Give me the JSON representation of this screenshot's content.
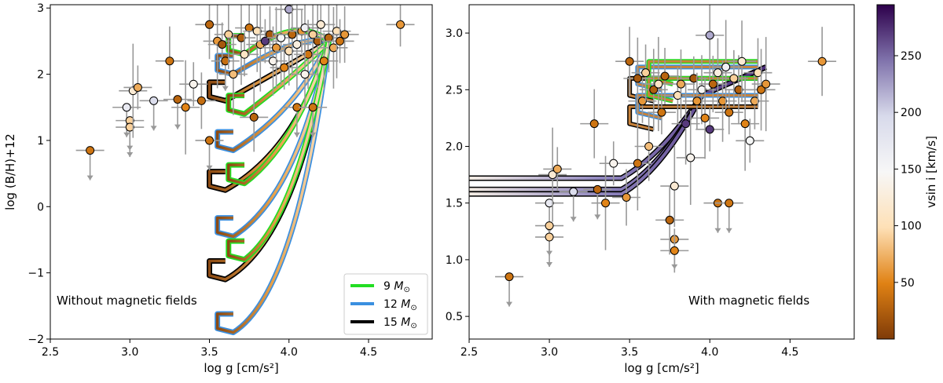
{
  "chart_data": [
    {
      "type": "scatter",
      "panel": "left",
      "title": "",
      "xlabel": "log g [cm/s²]",
      "ylabel": "log  (B/H)+12",
      "xlim": [
        2.5,
        4.9
      ],
      "ylim": [
        -2,
        3.05
      ],
      "xticks": [
        "2.5",
        "3.0",
        "3.5",
        "4.0",
        "4.5"
      ],
      "xtick_values": [
        2.5,
        3.0,
        3.5,
        4.0,
        4.5
      ],
      "yticks": [
        "−2",
        "−1",
        "0",
        "1",
        "2",
        "3"
      ],
      "ytick_values": [
        -2,
        -1,
        0,
        1,
        2,
        3
      ],
      "annotation": "Without magnetic fields",
      "legend": {
        "placement": "lower-right",
        "entries": [
          {
            "label": "9",
            "unit": "M",
            "sub": "⊙",
            "color": "#22dd22"
          },
          {
            "label": "12",
            "unit": "M",
            "sub": "⊙",
            "color": "#3a8fe0"
          },
          {
            "label": "15",
            "unit": "M",
            "sub": "⊙",
            "color": "#000000"
          }
        ]
      },
      "tracks": [
        {
          "mass": "15",
          "color": "#000000",
          "hook_g": 3.5,
          "levels": [
            1.6,
            0.25,
            -1.1
          ]
        },
        {
          "mass": "12",
          "color": "#3a8fe0",
          "hook_g": 3.55,
          "levels": [
            2.0,
            0.85,
            -0.45,
            -1.9
          ]
        },
        {
          "mass": "9",
          "color": "#22dd22",
          "hook_g": 3.62,
          "levels": [
            2.3,
            1.4,
            0.35,
            -0.8
          ]
        }
      ],
      "points": [
        {
          "x": 2.75,
          "y": 0.85,
          "v": 40,
          "upper": true
        },
        {
          "x": 2.98,
          "y": 1.5,
          "v": 170,
          "upper": true
        },
        {
          "x": 3.0,
          "y": 1.3,
          "v": 90,
          "upper": true
        },
        {
          "x": 3.0,
          "y": 1.2,
          "v": 90,
          "upper": true
        },
        {
          "x": 3.02,
          "y": 1.75,
          "v": 120,
          "upper": false
        },
        {
          "x": 3.05,
          "y": 1.8,
          "v": 70,
          "upper": false
        },
        {
          "x": 3.15,
          "y": 1.6,
          "v": 190,
          "upper": true
        },
        {
          "x": 3.25,
          "y": 2.2,
          "v": 40,
          "upper": false
        },
        {
          "x": 3.3,
          "y": 1.62,
          "v": 30,
          "upper": true
        },
        {
          "x": 3.35,
          "y": 1.5,
          "v": 50,
          "upper": false
        },
        {
          "x": 3.4,
          "y": 1.85,
          "v": 140,
          "upper": false
        },
        {
          "x": 3.45,
          "y": 1.6,
          "v": 35,
          "upper": false
        },
        {
          "x": 3.5,
          "y": 2.75,
          "v": 30,
          "upper": false
        },
        {
          "x": 3.5,
          "y": 1.0,
          "v": 40,
          "upper": true
        },
        {
          "x": 3.55,
          "y": 2.5,
          "v": 60,
          "upper": false
        },
        {
          "x": 3.58,
          "y": 2.45,
          "v": 20,
          "upper": false
        },
        {
          "x": 3.6,
          "y": 2.2,
          "v": 35,
          "upper": true
        },
        {
          "x": 3.62,
          "y": 2.6,
          "v": 90,
          "upper": false
        },
        {
          "x": 3.65,
          "y": 2.0,
          "v": 80,
          "upper": false
        },
        {
          "x": 3.7,
          "y": 2.55,
          "v": 25,
          "upper": false
        },
        {
          "x": 3.72,
          "y": 2.3,
          "v": 110,
          "upper": false
        },
        {
          "x": 3.75,
          "y": 2.7,
          "v": 40,
          "upper": false
        },
        {
          "x": 3.78,
          "y": 1.35,
          "v": 30,
          "upper": false
        },
        {
          "x": 3.8,
          "y": 2.65,
          "v": 100,
          "upper": false
        },
        {
          "x": 3.82,
          "y": 2.45,
          "v": 70,
          "upper": false
        },
        {
          "x": 3.85,
          "y": 2.5,
          "v": 270,
          "upper": false
        },
        {
          "x": 3.88,
          "y": 2.6,
          "v": 20,
          "upper": false
        },
        {
          "x": 3.9,
          "y": 2.2,
          "v": 140,
          "upper": false
        },
        {
          "x": 3.92,
          "y": 2.4,
          "v": 60,
          "upper": false
        },
        {
          "x": 3.95,
          "y": 2.55,
          "v": 150,
          "upper": false
        },
        {
          "x": 3.97,
          "y": 2.1,
          "v": 50,
          "upper": false
        },
        {
          "x": 4.0,
          "y": 2.98,
          "v": 220,
          "upper": false
        },
        {
          "x": 4.0,
          "y": 2.35,
          "v": 100,
          "upper": false
        },
        {
          "x": 4.02,
          "y": 2.6,
          "v": 30,
          "upper": false
        },
        {
          "x": 4.05,
          "y": 2.45,
          "v": 130,
          "upper": false
        },
        {
          "x": 4.08,
          "y": 2.65,
          "v": 60,
          "upper": false
        },
        {
          "x": 4.1,
          "y": 2.7,
          "v": 160,
          "upper": false
        },
        {
          "x": 4.12,
          "y": 2.3,
          "v": 40,
          "upper": false
        },
        {
          "x": 4.15,
          "y": 2.6,
          "v": 90,
          "upper": false
        },
        {
          "x": 4.18,
          "y": 2.5,
          "v": 25,
          "upper": false
        },
        {
          "x": 4.2,
          "y": 2.75,
          "v": 120,
          "upper": false
        },
        {
          "x": 4.22,
          "y": 2.2,
          "v": 50,
          "upper": false
        },
        {
          "x": 4.25,
          "y": 2.55,
          "v": 30,
          "upper": false
        },
        {
          "x": 4.28,
          "y": 2.4,
          "v": 70,
          "upper": false
        },
        {
          "x": 4.3,
          "y": 2.65,
          "v": 100,
          "upper": false
        },
        {
          "x": 4.32,
          "y": 2.5,
          "v": 40,
          "upper": false
        },
        {
          "x": 4.35,
          "y": 2.6,
          "v": 60,
          "upper": false
        },
        {
          "x": 4.1,
          "y": 2.0,
          "v": 140,
          "upper": false
        },
        {
          "x": 4.05,
          "y": 1.5,
          "v": 40,
          "upper": true
        },
        {
          "x": 4.15,
          "y": 1.5,
          "v": 40,
          "upper": true
        },
        {
          "x": 4.7,
          "y": 2.75,
          "v": 60,
          "upper": false
        }
      ]
    },
    {
      "type": "scatter",
      "panel": "right",
      "title": "",
      "xlabel": "log g [cm/s²]",
      "ylabel": "",
      "xlim": [
        2.5,
        4.9
      ],
      "ylim": [
        0.3,
        3.25
      ],
      "xticks": [
        "2.5",
        "3.0",
        "3.5",
        "4.0",
        "4.5"
      ],
      "xtick_values": [
        2.5,
        3.0,
        3.5,
        4.0,
        4.5
      ],
      "yticks": [
        "0.5",
        "1.0",
        "1.5",
        "2.0",
        "2.5",
        "3.0"
      ],
      "ytick_values": [
        0.5,
        1.0,
        1.5,
        2.0,
        2.5,
        3.0
      ],
      "annotation": "With magnetic fields",
      "tracks": [
        {
          "mass": "15",
          "color": "#000000",
          "hook_g": 3.5,
          "levels": [
            2.45,
            2.2
          ]
        },
        {
          "mass": "12",
          "color": "#3a8fe0",
          "hook_g": 3.55,
          "levels": [
            2.55,
            2.3
          ]
        },
        {
          "mass": "9",
          "color": "#22dd22",
          "hook_g": 3.62,
          "levels": [
            2.6,
            2.45
          ]
        }
      ],
      "points": [
        {
          "x": 2.75,
          "y": 0.85,
          "v": 40,
          "upper": true
        },
        {
          "x": 3.0,
          "y": 1.5,
          "v": 170,
          "upper": true
        },
        {
          "x": 3.0,
          "y": 1.3,
          "v": 90,
          "upper": true
        },
        {
          "x": 3.0,
          "y": 1.2,
          "v": 90,
          "upper": true
        },
        {
          "x": 3.02,
          "y": 1.75,
          "v": 120,
          "upper": false
        },
        {
          "x": 3.05,
          "y": 1.8,
          "v": 70,
          "upper": false
        },
        {
          "x": 3.15,
          "y": 1.6,
          "v": 190,
          "upper": true
        },
        {
          "x": 3.28,
          "y": 2.2,
          "v": 40,
          "upper": false
        },
        {
          "x": 3.3,
          "y": 1.62,
          "v": 30,
          "upper": true
        },
        {
          "x": 3.35,
          "y": 1.5,
          "v": 50,
          "upper": false
        },
        {
          "x": 3.4,
          "y": 1.85,
          "v": 140,
          "upper": false
        },
        {
          "x": 3.48,
          "y": 1.55,
          "v": 60,
          "upper": false
        },
        {
          "x": 3.5,
          "y": 2.75,
          "v": 30,
          "upper": false
        },
        {
          "x": 3.55,
          "y": 2.6,
          "v": 20,
          "upper": false
        },
        {
          "x": 3.55,
          "y": 1.85,
          "v": 40,
          "upper": false
        },
        {
          "x": 3.58,
          "y": 2.4,
          "v": 60,
          "upper": false
        },
        {
          "x": 3.6,
          "y": 2.65,
          "v": 90,
          "upper": false
        },
        {
          "x": 3.62,
          "y": 2.0,
          "v": 80,
          "upper": false
        },
        {
          "x": 3.65,
          "y": 2.5,
          "v": 25,
          "upper": false
        },
        {
          "x": 3.68,
          "y": 2.55,
          "v": 110,
          "upper": false
        },
        {
          "x": 3.7,
          "y": 2.3,
          "v": 40,
          "upper": false
        },
        {
          "x": 3.72,
          "y": 2.62,
          "v": 30,
          "upper": false
        },
        {
          "x": 3.75,
          "y": 1.35,
          "v": 30,
          "upper": false
        },
        {
          "x": 3.78,
          "y": 1.65,
          "v": 120,
          "upper": false
        },
        {
          "x": 3.78,
          "y": 1.18,
          "v": 60,
          "upper": true
        },
        {
          "x": 3.78,
          "y": 1.08,
          "v": 50,
          "upper": false
        },
        {
          "x": 3.8,
          "y": 2.45,
          "v": 100,
          "upper": false
        },
        {
          "x": 3.82,
          "y": 2.55,
          "v": 70,
          "upper": false
        },
        {
          "x": 3.85,
          "y": 2.2,
          "v": 270,
          "upper": false
        },
        {
          "x": 3.88,
          "y": 1.9,
          "v": 140,
          "upper": false
        },
        {
          "x": 3.9,
          "y": 2.6,
          "v": 20,
          "upper": false
        },
        {
          "x": 3.92,
          "y": 2.4,
          "v": 60,
          "upper": false
        },
        {
          "x": 3.95,
          "y": 2.5,
          "v": 150,
          "upper": false
        },
        {
          "x": 3.97,
          "y": 2.25,
          "v": 50,
          "upper": false
        },
        {
          "x": 4.0,
          "y": 2.98,
          "v": 220,
          "upper": false
        },
        {
          "x": 4.0,
          "y": 2.15,
          "v": 270,
          "upper": false
        },
        {
          "x": 4.02,
          "y": 2.55,
          "v": 30,
          "upper": false
        },
        {
          "x": 4.05,
          "y": 2.65,
          "v": 130,
          "upper": false
        },
        {
          "x": 4.08,
          "y": 2.4,
          "v": 60,
          "upper": false
        },
        {
          "x": 4.1,
          "y": 2.7,
          "v": 160,
          "upper": false
        },
        {
          "x": 4.12,
          "y": 2.3,
          "v": 40,
          "upper": false
        },
        {
          "x": 4.15,
          "y": 2.6,
          "v": 90,
          "upper": false
        },
        {
          "x": 4.18,
          "y": 2.5,
          "v": 25,
          "upper": false
        },
        {
          "x": 4.2,
          "y": 2.75,
          "v": 120,
          "upper": false
        },
        {
          "x": 4.22,
          "y": 2.2,
          "v": 50,
          "upper": false
        },
        {
          "x": 4.25,
          "y": 2.05,
          "v": 150,
          "upper": false
        },
        {
          "x": 4.28,
          "y": 2.4,
          "v": 70,
          "upper": false
        },
        {
          "x": 4.3,
          "y": 2.65,
          "v": 100,
          "upper": false
        },
        {
          "x": 4.32,
          "y": 2.5,
          "v": 40,
          "upper": false
        },
        {
          "x": 4.35,
          "y": 2.55,
          "v": 60,
          "upper": false
        },
        {
          "x": 4.05,
          "y": 1.5,
          "v": 40,
          "upper": true
        },
        {
          "x": 4.12,
          "y": 1.5,
          "v": 40,
          "upper": true
        },
        {
          "x": 4.7,
          "y": 2.75,
          "v": 60,
          "upper": false
        }
      ]
    }
  ],
  "colorbar": {
    "label": "vsin i [km/s]",
    "vmin": 0,
    "vmax": 295,
    "ticks": [
      "50",
      "100",
      "150",
      "200",
      "250"
    ],
    "tick_values": [
      50,
      100,
      150,
      200,
      250
    ],
    "stops": [
      "#7f3b08",
      "#e08214",
      "#fee0b6",
      "#f7f7f7",
      "#d8daeb",
      "#8073ac",
      "#2d004b"
    ]
  },
  "colors": {
    "errorbar": "#999999",
    "marker_edge": "#000000",
    "track_9": "#22dd22",
    "track_12": "#3a8fe0",
    "track_15": "#000000"
  }
}
